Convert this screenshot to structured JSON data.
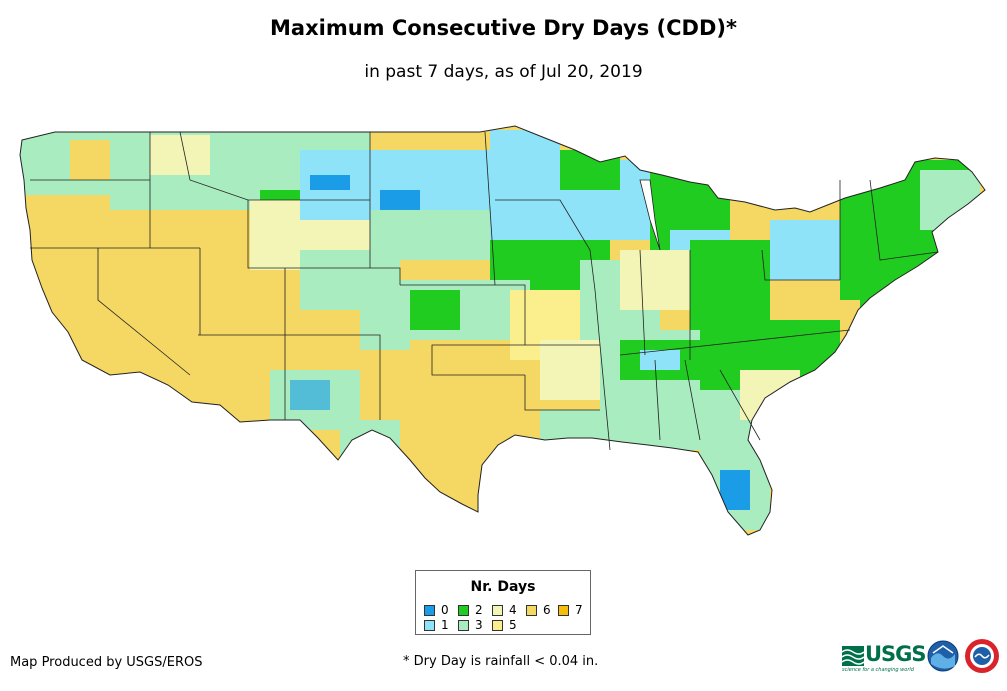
{
  "header": {
    "title": "Maximum Consecutive Dry Days (CDD)*",
    "subtitle": "in past 7 days, as of Jul 20, 2019"
  },
  "legend": {
    "title": "Nr. Days",
    "items": [
      {
        "label": "0",
        "color": "#1a9ce6"
      },
      {
        "label": "1",
        "color": "#8fe3f9"
      },
      {
        "label": "2",
        "color": "#1fcc1f"
      },
      {
        "label": "3",
        "color": "#a8ecc0"
      },
      {
        "label": "4",
        "color": "#f2f5b6"
      },
      {
        "label": "5",
        "color": "#fbee8c"
      },
      {
        "label": "6",
        "color": "#f5d763"
      },
      {
        "label": "7",
        "color": "#f5bd0c"
      }
    ]
  },
  "footer": {
    "credit": "Map Produced by USGS/EROS",
    "footnote": "* Dry Day is rainfall < 0.04 in.",
    "usgs_logo_text": "USGS",
    "usgs_tagline": "science for a changing world"
  },
  "logos": [
    "usgs-logo",
    "noaa-logo",
    "nws-logo"
  ]
}
